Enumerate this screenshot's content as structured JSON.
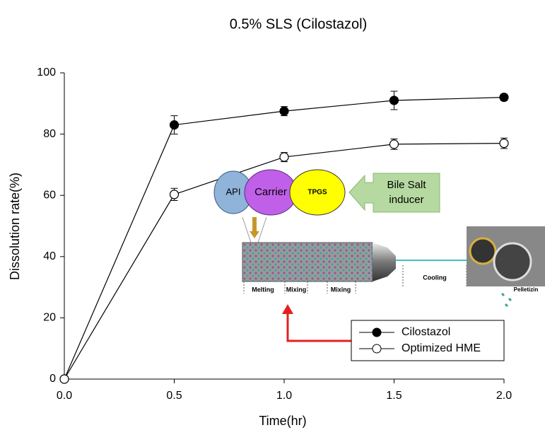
{
  "chart_data": {
    "type": "line",
    "title": "0.5% SLS (Cilostazol)",
    "x_label": "Time(hr)",
    "y_label": "Dissolution rate(%)",
    "x": [
      0,
      0.5,
      1,
      1.5,
      2
    ],
    "series": [
      {
        "name": "Cilostazol",
        "color": "#000000",
        "marker_fill": "#000000",
        "values": [
          0,
          83,
          87.5,
          91,
          92
        ],
        "errors": [
          0,
          3,
          1.5,
          3,
          1
        ]
      },
      {
        "name": "Optimized HME",
        "color": "#000000",
        "marker_fill": "#ffffff",
        "values": [
          0,
          60.3,
          72.5,
          76.7,
          77
        ],
        "errors": [
          0,
          2,
          1.5,
          1.7,
          1.7
        ]
      }
    ],
    "xlim": [
      0,
      2
    ],
    "ylim": [
      0,
      100
    ],
    "xticks": [
      {
        "value": 0,
        "label": "0.0"
      },
      0.5,
      {
        "value": 1,
        "label": "1.0"
      },
      1.5,
      {
        "value": 2,
        "label": "2.0"
      }
    ],
    "yticks": [
      0,
      20,
      40,
      60,
      80,
      100
    ],
    "grid": false,
    "annotations": [
      "API",
      "Carrier",
      "TPGS",
      "Bile Salt",
      "inducer",
      "Melting",
      "Mixing",
      "Mixing",
      "Cooling",
      "Pelletizin"
    ]
  }
}
